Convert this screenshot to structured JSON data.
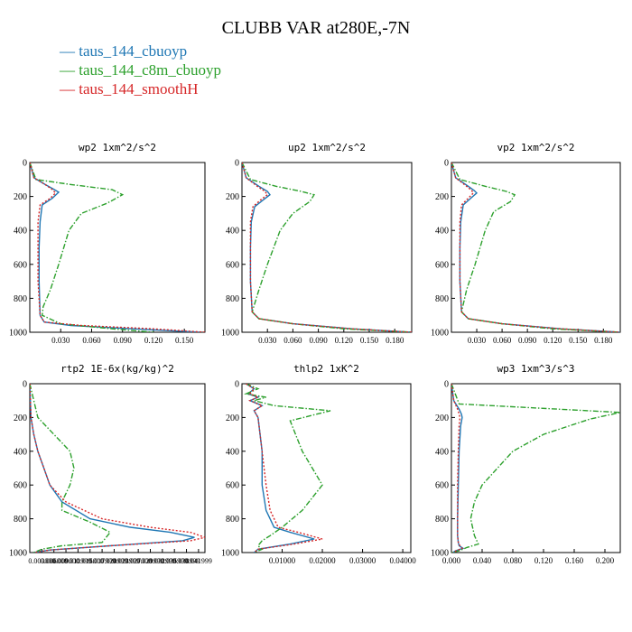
{
  "figure": {
    "title": "CLUBB VAR at280E,-7N",
    "legend": [
      {
        "label": "taus_144_cbuoyp",
        "color": "#1f77b4",
        "dash": "solid"
      },
      {
        "label": "taus_144_c8m_cbuoyp",
        "color": "#2ca02c",
        "dash": "dashdot"
      },
      {
        "label": "taus_144_smoothH",
        "color": "#d62728",
        "dash": "dotted"
      }
    ]
  },
  "chart_data": [
    {
      "type": "line",
      "title": "wp2  1xm^2/s^2",
      "xlim": [
        0,
        0.17
      ],
      "ylim": [
        0,
        1000
      ],
      "y_inverted": true,
      "xticks": [
        0.03,
        0.06,
        0.09,
        0.12,
        0.15
      ],
      "xtick_labels": [
        "0.030",
        "0.060",
        "0.090",
        "0.120",
        "0.150"
      ],
      "yticks": [
        0,
        200,
        400,
        600,
        800,
        1000
      ],
      "series": [
        {
          "name": "taus_144_cbuoyp",
          "x": [
            0,
            0.004,
            0.015,
            0.024,
            0.028,
            0.022,
            0.012,
            0.01,
            0.009,
            0.009,
            0.01,
            0.014,
            0.04,
            0.1,
            0.165
          ],
          "y": [
            0,
            90,
            130,
            160,
            175,
            210,
            250,
            350,
            500,
            700,
            900,
            940,
            960,
            980,
            1000
          ]
        },
        {
          "name": "taus_144_c8m_cbuoyp",
          "x": [
            0,
            0.006,
            0.04,
            0.08,
            0.09,
            0.075,
            0.05,
            0.038,
            0.028,
            0.02,
            0.013,
            0.012,
            0.03,
            0.08,
            0.12
          ],
          "y": [
            0,
            100,
            130,
            160,
            190,
            240,
            300,
            400,
            600,
            750,
            850,
            900,
            950,
            980,
            1000
          ]
        },
        {
          "name": "taus_144_smoothH",
          "x": [
            0,
            0.004,
            0.015,
            0.022,
            0.025,
            0.02,
            0.01,
            0.008,
            0.008,
            0.008,
            0.01,
            0.014,
            0.05,
            0.12,
            0.17
          ],
          "y": [
            0,
            90,
            130,
            160,
            180,
            210,
            250,
            350,
            500,
            700,
            900,
            940,
            960,
            980,
            1000
          ]
        }
      ]
    },
    {
      "type": "line",
      "title": "up2  1xm^2/s^2",
      "xlim": [
        0,
        0.2
      ],
      "ylim": [
        0,
        1000
      ],
      "y_inverted": true,
      "xticks": [
        0.03,
        0.06,
        0.09,
        0.12,
        0.15,
        0.18
      ],
      "xtick_labels": [
        "0.030",
        "0.060",
        "0.090",
        "0.120",
        "0.150",
        "0.180"
      ],
      "yticks": [
        0,
        200,
        400,
        600,
        800,
        1000
      ],
      "series": [
        {
          "name": "taus_144_cbuoyp",
          "x": [
            0,
            0.005,
            0.02,
            0.03,
            0.033,
            0.025,
            0.015,
            0.011,
            0.01,
            0.01,
            0.012,
            0.02,
            0.06,
            0.13,
            0.2
          ],
          "y": [
            0,
            90,
            140,
            170,
            190,
            220,
            260,
            350,
            500,
            700,
            880,
            920,
            950,
            980,
            1000
          ]
        },
        {
          "name": "taus_144_c8m_cbuoyp",
          "x": [
            0,
            0.01,
            0.04,
            0.07,
            0.085,
            0.08,
            0.06,
            0.045,
            0.03,
            0.02,
            0.012,
            0.02,
            0.06,
            0.12,
            0.2
          ],
          "y": [
            0,
            100,
            140,
            170,
            190,
            230,
            300,
            400,
            600,
            750,
            880,
            920,
            950,
            980,
            1000
          ]
        },
        {
          "name": "taus_144_smoothH",
          "x": [
            0,
            0.005,
            0.018,
            0.027,
            0.03,
            0.022,
            0.013,
            0.01,
            0.01,
            0.01,
            0.012,
            0.02,
            0.06,
            0.13,
            0.2
          ],
          "y": [
            0,
            90,
            140,
            170,
            190,
            220,
            260,
            350,
            500,
            700,
            880,
            920,
            950,
            980,
            1000
          ]
        }
      ]
    },
    {
      "type": "line",
      "title": "vp2  1xm^2/s^2",
      "xlim": [
        0,
        0.2
      ],
      "ylim": [
        0,
        1000
      ],
      "y_inverted": true,
      "xticks": [
        0.03,
        0.06,
        0.09,
        0.12,
        0.15,
        0.18
      ],
      "xtick_labels": [
        "0.030",
        "0.060",
        "0.090",
        "0.120",
        "0.150",
        "0.180"
      ],
      "yticks": [
        0,
        200,
        400,
        600,
        800,
        1000
      ],
      "series": [
        {
          "name": "taus_144_cbuoyp",
          "x": [
            0,
            0.005,
            0.02,
            0.027,
            0.03,
            0.023,
            0.014,
            0.011,
            0.01,
            0.01,
            0.012,
            0.02,
            0.06,
            0.13,
            0.2
          ],
          "y": [
            0,
            90,
            140,
            165,
            180,
            210,
            250,
            350,
            500,
            700,
            880,
            920,
            950,
            980,
            1000
          ]
        },
        {
          "name": "taus_144_c8m_cbuoyp",
          "x": [
            0,
            0.01,
            0.04,
            0.065,
            0.075,
            0.07,
            0.05,
            0.04,
            0.028,
            0.018,
            0.012,
            0.02,
            0.06,
            0.12,
            0.2
          ],
          "y": [
            0,
            100,
            140,
            170,
            190,
            230,
            290,
            400,
            600,
            750,
            880,
            920,
            950,
            980,
            1000
          ]
        },
        {
          "name": "taus_144_smoothH",
          "x": [
            0,
            0.005,
            0.018,
            0.024,
            0.026,
            0.02,
            0.012,
            0.01,
            0.01,
            0.01,
            0.012,
            0.02,
            0.06,
            0.13,
            0.2
          ],
          "y": [
            0,
            90,
            140,
            165,
            180,
            210,
            250,
            350,
            500,
            700,
            880,
            920,
            950,
            980,
            1000
          ]
        }
      ]
    },
    {
      "type": "line",
      "title": "rtp2  1E-6x(kg/kg)^2",
      "xlim": [
        0,
        0.0436
      ],
      "ylim": [
        0,
        1000
      ],
      "y_inverted": true,
      "xticks": [
        0.003,
        0.006,
        0.009,
        0.012,
        0.015,
        0.018,
        0.021,
        0.024,
        0.027,
        0.03,
        0.033,
        0.036,
        0.039,
        0.042
      ],
      "xtick_labels": [
        "0.003000",
        "0.006000",
        "0.009000",
        "0.011999",
        "0.015000",
        "0.017999",
        "0.020999",
        "0.023999",
        "0.027000",
        "0.029999",
        "0.032999",
        "0.035999",
        "0.038999",
        "0.041999"
      ],
      "yticks": [
        0,
        200,
        400,
        600,
        800,
        1000
      ],
      "series": [
        {
          "name": "taus_144_cbuoyp",
          "x": [
            0,
            0.0003,
            0.001,
            0.002,
            0.0035,
            0.005,
            0.008,
            0.015,
            0.025,
            0.035,
            0.041,
            0.038,
            0.02,
            0.005,
            0.001
          ],
          "y": [
            0,
            200,
            300,
            400,
            500,
            600,
            700,
            800,
            850,
            880,
            910,
            930,
            960,
            985,
            1000
          ]
        },
        {
          "name": "taus_144_c8m_cbuoyp",
          "x": [
            0,
            0.002,
            0.006,
            0.01,
            0.011,
            0.01,
            0.008,
            0.008,
            0.015,
            0.02,
            0.018,
            0.008,
            0.003,
            0.001
          ],
          "y": [
            0,
            200,
            300,
            400,
            500,
            600,
            700,
            750,
            820,
            880,
            940,
            960,
            980,
            1000
          ]
        },
        {
          "name": "taus_144_smoothH",
          "x": [
            0,
            0.0003,
            0.001,
            0.002,
            0.0035,
            0.005,
            0.009,
            0.018,
            0.03,
            0.04,
            0.0436,
            0.04,
            0.02,
            0.005,
            0.001
          ],
          "y": [
            0,
            200,
            300,
            400,
            500,
            600,
            700,
            800,
            850,
            880,
            910,
            930,
            960,
            985,
            1000
          ]
        }
      ]
    },
    {
      "type": "line",
      "title": "thlp2  1xK^2",
      "xlim": [
        0,
        0.042
      ],
      "ylim": [
        0,
        1000
      ],
      "y_inverted": true,
      "xticks": [
        0.01,
        0.02,
        0.03,
        0.04
      ],
      "xtick_labels": [
        "0.01000",
        "0.02000",
        "0.03000",
        "0.04000"
      ],
      "yticks": [
        0,
        200,
        400,
        600,
        800,
        1000
      ],
      "series": [
        {
          "name": "taus_144_cbuoyp",
          "x": [
            0.001,
            0.003,
            0.0015,
            0.004,
            0.002,
            0.005,
            0.003,
            0.004,
            0.005,
            0.005,
            0.006,
            0.008,
            0.012,
            0.018,
            0.012,
            0.004,
            0.003
          ],
          "y": [
            0,
            30,
            60,
            80,
            100,
            130,
            160,
            200,
            400,
            600,
            750,
            850,
            880,
            920,
            950,
            980,
            1000
          ]
        },
        {
          "name": "taus_144_c8m_cbuoyp",
          "x": [
            0.001,
            0.004,
            0.001,
            0.006,
            0.003,
            0.008,
            0.022,
            0.012,
            0.015,
            0.02,
            0.015,
            0.01,
            0.007,
            0.005,
            0.004,
            0.005,
            0.003
          ],
          "y": [
            0,
            30,
            60,
            80,
            100,
            130,
            160,
            220,
            400,
            600,
            750,
            850,
            900,
            930,
            960,
            980,
            1000
          ]
        },
        {
          "name": "taus_144_smoothH",
          "x": [
            0.001,
            0.003,
            0.002,
            0.004,
            0.002,
            0.005,
            0.003,
            0.004,
            0.005,
            0.006,
            0.007,
            0.009,
            0.014,
            0.02,
            0.013,
            0.004,
            0.003
          ],
          "y": [
            0,
            30,
            60,
            80,
            100,
            130,
            160,
            200,
            400,
            600,
            750,
            850,
            880,
            920,
            950,
            980,
            1000
          ]
        }
      ]
    },
    {
      "type": "line",
      "title": "wp3  1xm^3/s^3",
      "xlim": [
        0,
        0.22
      ],
      "ylim": [
        0,
        1000
      ],
      "y_inverted": true,
      "xticks": [
        0,
        0.04,
        0.08,
        0.12,
        0.16,
        0.2
      ],
      "xtick_labels": [
        "0.000",
        "0.040",
        "0.080",
        "0.120",
        "0.160",
        "0.200"
      ],
      "yticks": [
        0,
        200,
        400,
        600,
        800,
        1000
      ],
      "series": [
        {
          "name": "taus_144_cbuoyp",
          "x": [
            0,
            0.003,
            0.01,
            0.013,
            0.014,
            0.012,
            0.01,
            0.009,
            0.008,
            0.008,
            0.009,
            0.01,
            0.015,
            0.005,
            0.002
          ],
          "y": [
            0,
            100,
            150,
            180,
            200,
            250,
            400,
            600,
            800,
            900,
            940,
            960,
            975,
            990,
            1000
          ]
        },
        {
          "name": "taus_144_c8m_cbuoyp",
          "x": [
            0,
            0.01,
            0.22,
            0.18,
            0.12,
            0.08,
            0.06,
            0.04,
            0.03,
            0.025,
            0.03,
            0.035,
            0.02,
            0.01,
            0
          ],
          "y": [
            0,
            120,
            170,
            210,
            300,
            400,
            500,
            600,
            700,
            800,
            900,
            950,
            970,
            990,
            1000
          ]
        },
        {
          "name": "taus_144_smoothH",
          "x": [
            0,
            0.003,
            0.008,
            0.01,
            0.011,
            0.01,
            0.009,
            0.008,
            0.008,
            0.008,
            0.009,
            0.011,
            0.014,
            0.006,
            0.002
          ],
          "y": [
            0,
            100,
            150,
            180,
            200,
            250,
            400,
            600,
            800,
            900,
            940,
            960,
            975,
            990,
            1000
          ]
        }
      ]
    }
  ]
}
